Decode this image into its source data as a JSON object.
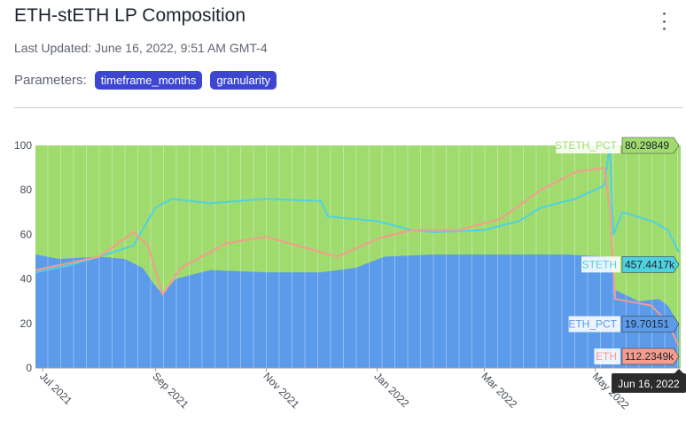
{
  "header": {
    "title": "ETH-stETH LP Composition",
    "last_updated": "Last Updated: June 16, 2022, 9:51 AM GMT-4",
    "params_label": "Parameters:",
    "params": [
      "timeframe_months",
      "granularity"
    ]
  },
  "colors": {
    "steth_pct": "#a0db6e",
    "eth_pct": "#5b9bea",
    "steth": "#4fd2e0",
    "eth": "#f59c8f",
    "hover_date_bg": "#2b2b2b"
  },
  "chart_data": {
    "type": "area",
    "title": "ETH-stETH LP Composition",
    "ylim": [
      0,
      100
    ],
    "yticks": [
      "0",
      "20",
      "40",
      "60",
      "80",
      "100"
    ],
    "xlim": [
      "2021-06-27",
      "2022-06-17"
    ],
    "xticks": [
      {
        "label": "Jul 2021",
        "date": "2021-07-01"
      },
      {
        "label": "Sep 2021",
        "date": "2021-09-01"
      },
      {
        "label": "Nov 2021",
        "date": "2021-11-01"
      },
      {
        "label": "Jan 2022",
        "date": "2022-01-01"
      },
      {
        "label": "Mar 2022",
        "date": "2022-03-01"
      },
      {
        "label": "May 2022",
        "date": "2022-05-01"
      }
    ],
    "series": [
      {
        "name": "ETH_PCT",
        "kind": "stacked-area",
        "points": [
          [
            "2021-06-27",
            51
          ],
          [
            "2021-07-10",
            49
          ],
          [
            "2021-08-01",
            50
          ],
          [
            "2021-08-15",
            49
          ],
          [
            "2021-08-25",
            45
          ],
          [
            "2021-08-31",
            38
          ],
          [
            "2021-09-05",
            33
          ],
          [
            "2021-09-12",
            40
          ],
          [
            "2021-10-01",
            44
          ],
          [
            "2021-11-01",
            43
          ],
          [
            "2021-12-01",
            43
          ],
          [
            "2021-12-20",
            45
          ],
          [
            "2022-01-05",
            50
          ],
          [
            "2022-02-01",
            51
          ],
          [
            "2022-03-01",
            51
          ],
          [
            "2022-04-15",
            51
          ],
          [
            "2022-05-07",
            50
          ],
          [
            "2022-05-10",
            46
          ],
          [
            "2022-05-12",
            35
          ],
          [
            "2022-05-25",
            30
          ],
          [
            "2022-06-05",
            31
          ],
          [
            "2022-06-10",
            28
          ],
          [
            "2022-06-16",
            19.70151
          ]
        ]
      },
      {
        "name": "STETH_PCT",
        "kind": "stacked-area",
        "points": [
          [
            "2021-06-27",
            49
          ],
          [
            "2021-07-10",
            51
          ],
          [
            "2021-08-01",
            50
          ],
          [
            "2021-08-15",
            51
          ],
          [
            "2021-08-25",
            55
          ],
          [
            "2021-08-31",
            62
          ],
          [
            "2021-09-05",
            67
          ],
          [
            "2021-09-12",
            60
          ],
          [
            "2021-10-01",
            56
          ],
          [
            "2021-11-01",
            57
          ],
          [
            "2021-12-01",
            57
          ],
          [
            "2021-12-20",
            55
          ],
          [
            "2022-01-05",
            50
          ],
          [
            "2022-02-01",
            49
          ],
          [
            "2022-03-01",
            49
          ],
          [
            "2022-04-15",
            49
          ],
          [
            "2022-05-07",
            50
          ],
          [
            "2022-05-10",
            54
          ],
          [
            "2022-05-12",
            65
          ],
          [
            "2022-05-25",
            70
          ],
          [
            "2022-06-05",
            69
          ],
          [
            "2022-06-10",
            72
          ],
          [
            "2022-06-16",
            80.29849
          ]
        ]
      },
      {
        "name": "STETH",
        "kind": "line",
        "points": [
          [
            "2021-06-27",
            43
          ],
          [
            "2021-07-15",
            46
          ],
          [
            "2021-08-01",
            50
          ],
          [
            "2021-08-20",
            55
          ],
          [
            "2021-09-01",
            72
          ],
          [
            "2021-09-10",
            76
          ],
          [
            "2021-10-01",
            74
          ],
          [
            "2021-11-01",
            76
          ],
          [
            "2021-12-01",
            75
          ],
          [
            "2021-12-05",
            68
          ],
          [
            "2022-01-01",
            66
          ],
          [
            "2022-01-20",
            62
          ],
          [
            "2022-02-01",
            61
          ],
          [
            "2022-03-01",
            62
          ],
          [
            "2022-03-20",
            66
          ],
          [
            "2022-04-01",
            72
          ],
          [
            "2022-04-20",
            76
          ],
          [
            "2022-05-06",
            82
          ],
          [
            "2022-05-09",
            100
          ],
          [
            "2022-05-11",
            60
          ],
          [
            "2022-05-16",
            70
          ],
          [
            "2022-06-01",
            66
          ],
          [
            "2022-06-10",
            62
          ],
          [
            "2022-06-16",
            52
          ]
        ]
      },
      {
        "name": "ETH",
        "kind": "line",
        "points": [
          [
            "2021-06-27",
            44
          ],
          [
            "2021-07-15",
            47
          ],
          [
            "2021-08-01",
            50
          ],
          [
            "2021-08-20",
            61
          ],
          [
            "2021-08-28",
            55
          ],
          [
            "2021-09-05",
            33
          ],
          [
            "2021-09-15",
            45
          ],
          [
            "2021-10-10",
            56
          ],
          [
            "2021-11-01",
            59
          ],
          [
            "2021-12-01",
            52
          ],
          [
            "2021-12-10",
            50
          ],
          [
            "2022-01-01",
            58
          ],
          [
            "2022-01-20",
            62
          ],
          [
            "2022-02-15",
            62
          ],
          [
            "2022-03-10",
            67
          ],
          [
            "2022-04-01",
            80
          ],
          [
            "2022-04-20",
            88
          ],
          [
            "2022-05-06",
            90
          ],
          [
            "2022-05-09",
            72
          ],
          [
            "2022-05-12",
            31
          ],
          [
            "2022-06-01",
            28
          ],
          [
            "2022-06-10",
            20
          ],
          [
            "2022-06-16",
            10
          ]
        ]
      }
    ],
    "hover": {
      "date_label": "Jun 16, 2022",
      "labels": [
        {
          "name": "STETH_PCT",
          "value": "80.29849",
          "y": 100
        },
        {
          "name": "STETH",
          "value": "457.4417k",
          "y": 46.5
        },
        {
          "name": "ETH_PCT",
          "value": "19.70151",
          "y": 19.7
        },
        {
          "name": "ETH",
          "value": "112.2349k",
          "y": 4
        }
      ]
    }
  }
}
